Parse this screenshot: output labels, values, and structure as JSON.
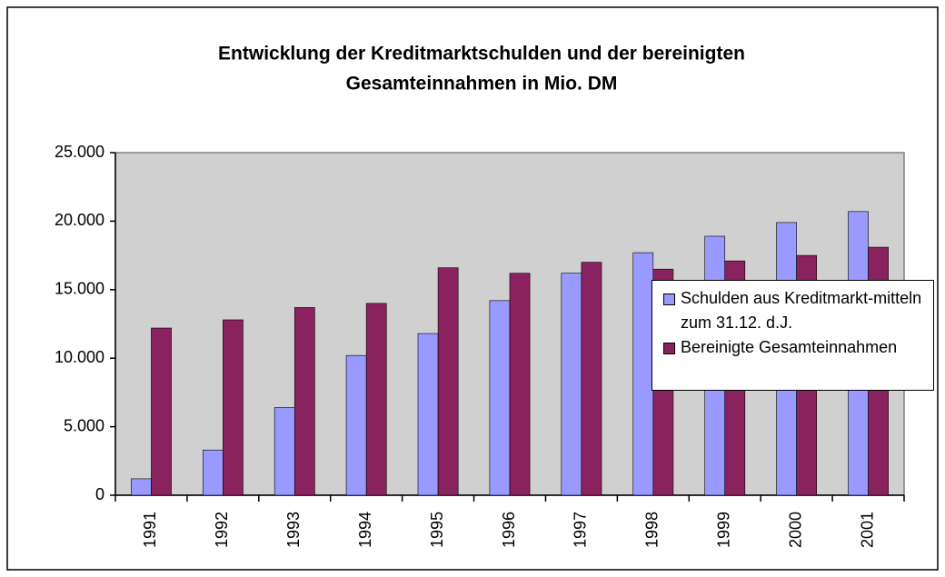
{
  "chart_data": {
    "type": "bar",
    "title": "Entwicklung der Kreditmarktschulden und der bereinigten",
    "subtitle": "Gesamteinnahmen in Mio. DM",
    "categories": [
      "1991",
      "1992",
      "1993",
      "1994",
      "1995",
      "1996",
      "1997",
      "1998",
      "1999",
      "2000",
      "2001"
    ],
    "series": [
      {
        "name": "Schulden aus Kreditmarkt-mitteln zum 31.12. d.J.",
        "color": "#9999ff",
        "values": [
          1200,
          3300,
          6400,
          10200,
          11800,
          14200,
          16200,
          17700,
          18900,
          19900,
          20700
        ]
      },
      {
        "name": "Bereinigte Gesamteinnahmen",
        "color": "#8b2260",
        "values": [
          12200,
          12800,
          13700,
          14000,
          16600,
          16200,
          17000,
          16500,
          17100,
          17500,
          18100
        ]
      }
    ],
    "ylim": [
      0,
      25000
    ],
    "yticks": [
      0,
      {
        "value": 5000,
        "label": "5.000"
      },
      {
        "value": 10000,
        "label": "10.000"
      },
      {
        "value": 15000,
        "label": "15.000"
      },
      {
        "value": 20000,
        "label": "20.000"
      },
      {
        "value": 25000,
        "label": "25.000"
      }
    ],
    "grid": false,
    "legend": "right"
  }
}
